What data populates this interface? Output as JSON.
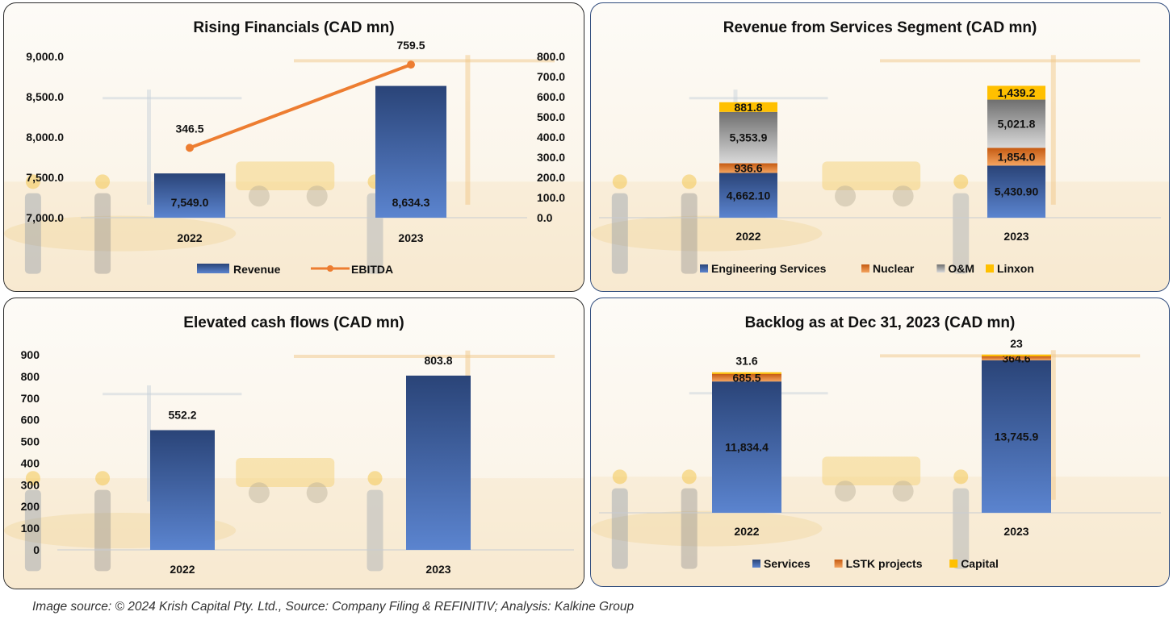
{
  "colors": {
    "blue_dark": "#2a4478",
    "blue_light": "#5b84cf",
    "orange": "#ed7d31",
    "orange_dark": "#c55a11",
    "gray": "#9a9a9a",
    "yellow": "#ffc000"
  },
  "footer": "Image source: © 2024 Krish Capital Pty. Ltd., Source: Company Filing & REFINITIV; Analysis: Kalkine Group",
  "chart_data": [
    {
      "id": "rising-financials",
      "type": "bar+line",
      "title": "Rising Financials (CAD mn)",
      "categories": [
        "2022",
        "2023"
      ],
      "series": [
        {
          "name": "Revenue",
          "type": "bar",
          "axis": "left",
          "values": [
            7549.0,
            8634.3
          ],
          "labels": [
            "7,549.0",
            "8,634.3"
          ]
        },
        {
          "name": "EBITDA",
          "type": "line",
          "axis": "right",
          "values": [
            346.5,
            759.5
          ],
          "labels": [
            "346.5",
            "759.5"
          ]
        }
      ],
      "y_left": {
        "min": 7000,
        "max": 9000,
        "ticks": [
          "7,000.0",
          "7,500.0",
          "8,000.0",
          "8,500.0",
          "9,000.0"
        ]
      },
      "y_right": {
        "min": 0,
        "max": 800,
        "ticks": [
          "0.0",
          "100.0",
          "200.0",
          "300.0",
          "400.0",
          "500.0",
          "600.0",
          "700.0",
          "800.0"
        ]
      },
      "legend": [
        "Revenue",
        "EBITDA"
      ],
      "legend_position": "bottom",
      "grid": false
    },
    {
      "id": "services-revenue",
      "type": "stacked-bar",
      "title": "Revenue from Services Segment (CAD mn)",
      "categories": [
        "2022",
        "2023"
      ],
      "series": [
        {
          "name": "Engineering Services",
          "values": [
            4662.1,
            5430.9
          ],
          "labels": [
            "4,662.10",
            "5,430.90"
          ]
        },
        {
          "name": "Nuclear",
          "values": [
            936.6,
            1854.0
          ],
          "labels": [
            "936.6",
            "1,854.0"
          ]
        },
        {
          "name": "O&M",
          "values": [
            5353.9,
            5021.8
          ],
          "labels": [
            "5,353.9",
            "5,021.8"
          ]
        },
        {
          "name": "Linxon",
          "values": [
            881.8,
            1439.2
          ],
          "labels": [
            "881.8",
            "1,439.2"
          ]
        }
      ],
      "legend": [
        "Engineering Services",
        "Nuclear",
        "O&M",
        "Linxon"
      ],
      "legend_position": "bottom",
      "grid": false
    },
    {
      "id": "cash-flows",
      "type": "bar",
      "title": "Elevated cash flows (CAD mn)",
      "categories": [
        "2022",
        "2023"
      ],
      "values": [
        552.2,
        803.8
      ],
      "labels": [
        "552.2",
        "803.8"
      ],
      "ylim": [
        0,
        900
      ],
      "y_ticks": [
        "0",
        "100",
        "200",
        "300",
        "400",
        "500",
        "600",
        "700",
        "800",
        "900"
      ],
      "grid": false
    },
    {
      "id": "backlog",
      "type": "stacked-bar",
      "title": "Backlog as at Dec 31, 2023 (CAD mn)",
      "categories": [
        "2022",
        "2023"
      ],
      "series": [
        {
          "name": "Services",
          "values": [
            11834.4,
            13745.9
          ],
          "labels": [
            "11,834.4",
            "13,745.9"
          ]
        },
        {
          "name": "LSTK projects",
          "values": [
            685.5,
            364.6
          ],
          "labels": [
            "685.5",
            "364.6"
          ]
        },
        {
          "name": "Capital",
          "values": [
            31.6,
            23
          ],
          "labels": [
            "31.6",
            "23"
          ]
        }
      ],
      "legend": [
        "Services",
        "LSTK projects",
        "Capital"
      ],
      "legend_position": "bottom",
      "grid": false
    }
  ]
}
